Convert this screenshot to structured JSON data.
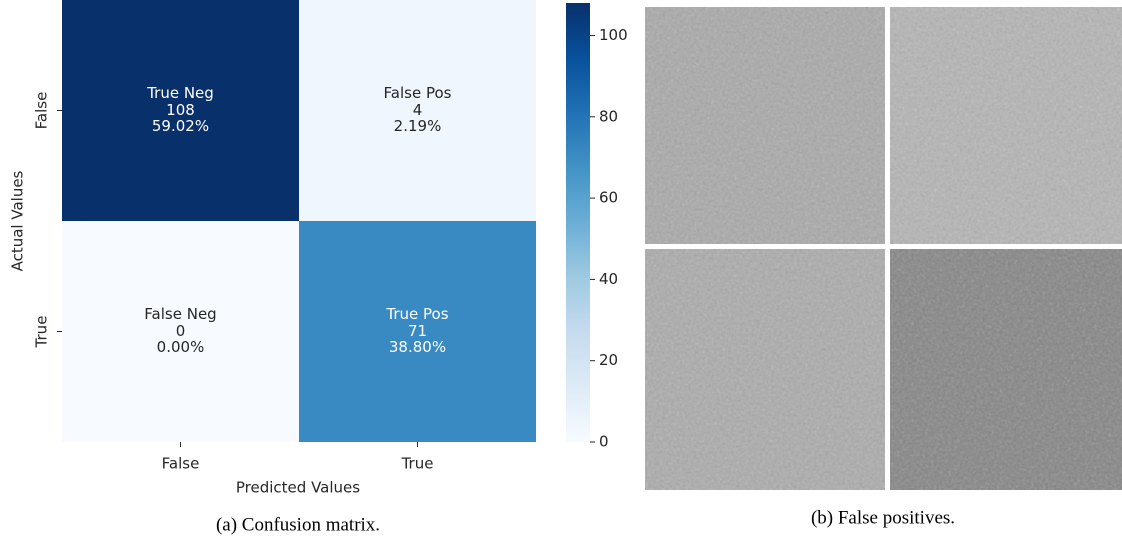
{
  "chart_data": {
    "type": "heatmap",
    "x_label": "Predicted Values",
    "y_label": "Actual Values",
    "x_categories": [
      "False",
      "True"
    ],
    "y_categories": [
      "False",
      "True"
    ],
    "values": [
      [
        108,
        4
      ],
      [
        0,
        71
      ]
    ],
    "cell_labels": [
      [
        "True Neg",
        "False Pos"
      ],
      [
        "False Neg",
        "True Pos"
      ]
    ],
    "percent_labels": [
      [
        "59.02%",
        "2.19%"
      ],
      [
        "0.00%",
        "38.80%"
      ]
    ],
    "colormap": [
      "#f7fbff",
      "#deebf7",
      "#c6dbef",
      "#9ecae1",
      "#6baed6",
      "#4292c6",
      "#2171b5",
      "#08519c",
      "#08306b"
    ],
    "colorbar_lim": [
      0,
      108
    ],
    "colorbar_ticks": [
      0,
      20,
      40,
      60,
      80,
      100
    ]
  },
  "captions": {
    "left": "(a) Confusion matrix.",
    "right": "(b) False positives."
  }
}
